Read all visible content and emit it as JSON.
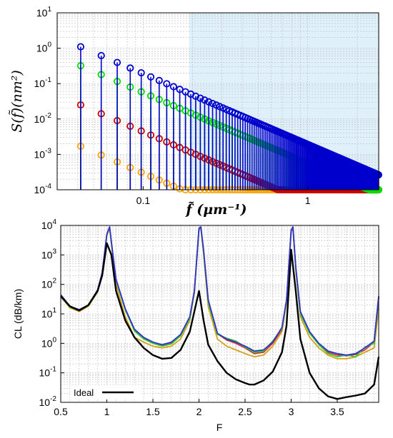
{
  "chart_data": [
    {
      "type": "scatter",
      "xlabel": "f̃ (μm⁻¹)",
      "ylabel": "S(f̃)(nm²)",
      "x_scale": "log",
      "y_scale": "log",
      "xlim": [
        0.03,
        2.7
      ],
      "ylim": [
        0.0001,
        10
      ],
      "x_ticks": [
        {
          "v": 0.1,
          "label": "0.1"
        },
        {
          "v": 1,
          "label": "1"
        }
      ],
      "y_ticks": [
        {
          "v": 10,
          "label": "10",
          "exp": "1"
        },
        {
          "v": 1,
          "label": "10",
          "exp": "0"
        },
        {
          "v": 0.1,
          "label": "10",
          "exp": "-1"
        },
        {
          "v": 0.01,
          "label": "10",
          "exp": "-2"
        },
        {
          "v": 0.001,
          "label": "10",
          "exp": "-3"
        },
        {
          "v": 0.0001,
          "label": "10",
          "exp": "-4"
        }
      ],
      "shaded_region_x_from": 0.19,
      "shaded_color": "#dff0fa",
      "grid": true,
      "x_spacing": 0.0139,
      "x_start": 0.0417,
      "x_stop": 2.7,
      "series": [
        {
          "color": "#0000cc",
          "y_at_first": 1.1,
          "slope": -2.0,
          "plateau": null
        },
        {
          "color": "#00dd00",
          "y_at_first": 0.32,
          "slope": -2.0,
          "plateau": null
        },
        {
          "color": "#cc0000",
          "y_at_first": 0.025,
          "slope": -2.0,
          "plateau": 0.025
        },
        {
          "color": "#ffa500",
          "y_at_first": 0.0017,
          "slope": -2.0,
          "plateau": 0.0017
        }
      ],
      "lines_to_bottom": true
    },
    {
      "type": "line",
      "xlabel": "F",
      "ylabel": "CL (dB/km)",
      "x_scale": "linear",
      "y_scale": "log",
      "xlim": [
        0.5,
        3.95
      ],
      "ylim": [
        0.01,
        10000
      ],
      "x_ticks": [
        0.5,
        1,
        1.5,
        2,
        2.5,
        3,
        3.5
      ],
      "x_tick_labels": [
        "0.5",
        "1",
        "1.5",
        "2",
        "2.5",
        "3",
        "3.5"
      ],
      "y_ticks": [
        {
          "v": 10000,
          "label": "10",
          "exp": "4"
        },
        {
          "v": 1000,
          "label": "10",
          "exp": "3"
        },
        {
          "v": 100,
          "label": "10",
          "exp": "2"
        },
        {
          "v": 10,
          "label": "10",
          "exp": "1"
        },
        {
          "v": 1,
          "label": "10",
          "exp": "0"
        },
        {
          "v": 0.1,
          "label": "10",
          "exp": "-1"
        },
        {
          "v": 0.01,
          "label": "10",
          "exp": "-2"
        }
      ],
      "grid": true,
      "legend": {
        "label": "Ideal",
        "position": "bottom-left"
      },
      "series": [
        {
          "name": "Ideal",
          "color": "#000000",
          "width": 2.4,
          "x": [
            0.5,
            0.6,
            0.7,
            0.8,
            0.9,
            0.95,
            1.0,
            1.05,
            1.1,
            1.2,
            1.3,
            1.4,
            1.5,
            1.6,
            1.7,
            1.8,
            1.9,
            1.95,
            2.0,
            2.05,
            2.1,
            2.2,
            2.3,
            2.4,
            2.5,
            2.55,
            2.6,
            2.7,
            2.8,
            2.9,
            2.95,
            3.0,
            3.05,
            3.1,
            3.2,
            3.3,
            3.4,
            3.5,
            3.6,
            3.7,
            3.8,
            3.9,
            3.95
          ],
          "y": [
            40,
            18,
            13,
            20,
            60,
            200,
            2500,
            1000,
            60,
            6,
            1.6,
            0.7,
            0.4,
            0.3,
            0.32,
            0.6,
            2.5,
            12,
            60,
            6,
            0.9,
            0.25,
            0.1,
            0.06,
            0.045,
            0.04,
            0.04,
            0.055,
            0.11,
            0.5,
            4,
            1500,
            60,
            1.4,
            0.1,
            0.03,
            0.016,
            0.013,
            0.015,
            0.017,
            0.02,
            0.04,
            0.35
          ]
        },
        {
          "name": "",
          "color": "#3333cc",
          "width": 1.8,
          "x": [
            0.5,
            0.6,
            0.7,
            0.8,
            0.9,
            0.95,
            1.0,
            1.03,
            1.06,
            1.1,
            1.2,
            1.3,
            1.4,
            1.5,
            1.6,
            1.7,
            1.8,
            1.9,
            1.95,
            2.0,
            2.02,
            2.05,
            2.1,
            2.2,
            2.3,
            2.4,
            2.5,
            2.6,
            2.7,
            2.8,
            2.9,
            2.95,
            3.0,
            3.02,
            3.05,
            3.1,
            3.2,
            3.3,
            3.4,
            3.5,
            3.6,
            3.7,
            3.8,
            3.9,
            3.95
          ],
          "y": [
            45,
            18,
            14,
            20,
            65,
            250,
            5000,
            9000,
            1500,
            150,
            15,
            3,
            1.6,
            1.1,
            0.9,
            1.1,
            2,
            8,
            60,
            8000,
            9000,
            1500,
            30,
            2.2,
            1.4,
            1.1,
            0.8,
            0.55,
            0.6,
            1.1,
            3.5,
            30,
            7000,
            9000,
            400,
            12,
            2.5,
            1,
            0.55,
            0.45,
            0.4,
            0.45,
            0.7,
            1.2,
            40
          ]
        },
        {
          "name": "",
          "color": "#33cc33",
          "width": 1.8,
          "x": [
            0.5,
            0.6,
            0.7,
            0.8,
            0.9,
            0.95,
            1.0,
            1.03,
            1.06,
            1.1,
            1.2,
            1.3,
            1.4,
            1.5,
            1.6,
            1.7,
            1.8,
            1.9,
            1.95,
            2.0,
            2.02,
            2.05,
            2.1,
            2.2,
            2.3,
            2.4,
            2.5,
            2.6,
            2.7,
            2.8,
            2.9,
            2.95,
            3.0,
            3.02,
            3.05,
            3.1,
            3.2,
            3.3,
            3.4,
            3.5,
            3.6,
            3.7,
            3.8,
            3.9,
            3.95
          ],
          "y": [
            40,
            17,
            13,
            19,
            60,
            240,
            4800,
            8500,
            1400,
            140,
            14,
            2.6,
            1.4,
            1.0,
            0.8,
            0.95,
            1.8,
            7,
            55,
            7500,
            8500,
            1300,
            25,
            2.0,
            1.5,
            1.2,
            0.75,
            0.5,
            0.55,
            1.2,
            3.2,
            28,
            6500,
            8500,
            350,
            10,
            2.2,
            0.9,
            0.45,
            0.35,
            0.4,
            0.35,
            0.75,
            1.0,
            35
          ]
        },
        {
          "name": "",
          "color": "#cc3333",
          "width": 1.8,
          "x": [
            0.5,
            0.6,
            0.7,
            0.8,
            0.9,
            0.95,
            1.0,
            1.03,
            1.06,
            1.1,
            1.2,
            1.3,
            1.4,
            1.5,
            1.6,
            1.7,
            1.8,
            1.9,
            1.95,
            2.0,
            2.02,
            2.05,
            2.1,
            2.2,
            2.3,
            2.4,
            2.5,
            2.6,
            2.7,
            2.8,
            2.9,
            2.95,
            3.0,
            3.02,
            3.05,
            3.1,
            3.2,
            3.3,
            3.4,
            3.5,
            3.6,
            3.7,
            3.8,
            3.9,
            3.95
          ],
          "y": [
            42,
            17,
            13,
            19,
            62,
            245,
            4900,
            8800,
            1450,
            145,
            14,
            2.8,
            1.5,
            1.05,
            0.85,
            1.0,
            1.9,
            7.5,
            58,
            7800,
            8800,
            1350,
            28,
            2.1,
            1.3,
            1.0,
            0.7,
            0.45,
            0.5,
            1.0,
            3.0,
            29,
            6800,
            8800,
            380,
            11,
            2.4,
            0.95,
            0.5,
            0.4,
            0.38,
            0.42,
            0.6,
            1.1,
            38
          ]
        },
        {
          "name": "",
          "color": "#d4a017",
          "width": 1.8,
          "x": [
            0.5,
            0.6,
            0.7,
            0.8,
            0.9,
            0.95,
            1.0,
            1.03,
            1.06,
            1.1,
            1.2,
            1.3,
            1.4,
            1.5,
            1.6,
            1.7,
            1.8,
            1.9,
            1.95,
            2.0,
            2.02,
            2.05,
            2.1,
            2.2,
            2.3,
            2.4,
            2.5,
            2.6,
            2.7,
            2.8,
            2.9,
            2.95,
            3.0,
            3.02,
            3.05,
            3.1,
            3.2,
            3.3,
            3.4,
            3.5,
            3.6,
            3.7,
            3.8,
            3.9,
            3.95
          ],
          "y": [
            38,
            16,
            12,
            18,
            55,
            220,
            4500,
            8000,
            1300,
            100,
            8,
            1.6,
            1.1,
            0.8,
            0.7,
            0.8,
            1.4,
            6,
            50,
            7000,
            8000,
            1100,
            18,
            1.4,
            0.8,
            0.6,
            0.45,
            0.35,
            0.4,
            0.8,
            2.5,
            25,
            6000,
            8000,
            300,
            8,
            1.6,
            0.7,
            0.4,
            0.3,
            0.3,
            0.35,
            0.5,
            0.7,
            15
          ]
        }
      ]
    }
  ]
}
